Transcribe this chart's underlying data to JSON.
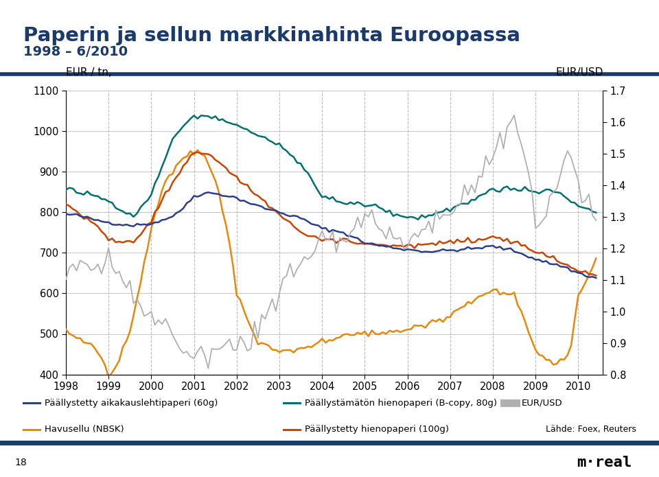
{
  "title_line1": "Paperin ja sellun markkinahinta Euroopassa",
  "title_line2": "1998 – 6/2010",
  "ylabel_left": "EUR / tn,",
  "ylabel_right": "EUR/USD",
  "ylim_left": [
    400,
    1100
  ],
  "ylim_right": [
    0.8,
    1.7
  ],
  "yticks_left": [
    400,
    500,
    600,
    700,
    800,
    900,
    1000,
    1100
  ],
  "yticks_right": [
    0.8,
    0.9,
    1.0,
    1.1,
    1.2,
    1.3,
    1.4,
    1.5,
    1.6,
    1.7
  ],
  "xtick_labels": [
    "1998",
    "1999",
    "2000",
    "2001",
    "2002",
    "2003",
    "2004",
    "2005",
    "2006",
    "2007",
    "2008",
    "2009",
    "2010"
  ],
  "title_color": "#1a3a6b",
  "line_colors": {
    "paallystetty_aika": "#2b3f8c",
    "havusellu": "#e8880a",
    "paallystamaton": "#007070",
    "paallystetty_hieno": "#cc4400",
    "eurusd": "#b0b0b0"
  },
  "background_color": "#ffffff",
  "legend_items": [
    {
      "label": "Päällystetty aikakauslehtipaperi (60g)",
      "color": "#2b3f8c"
    },
    {
      "label": "Havusellu (NBSK)",
      "color": "#e8880a"
    },
    {
      "label": "Päällystämätön hienopaperi (B-copy, 80g)",
      "color": "#007070"
    },
    {
      "label": "Päällystetty hienopaperi (100g)",
      "color": "#cc4400"
    },
    {
      "label": "EUR/USD",
      "color": "#b0b0b0"
    }
  ],
  "source_text": "Lähde: Foex, Reuters",
  "page_number": "18",
  "footer_bar_color": "#1a3a6b"
}
